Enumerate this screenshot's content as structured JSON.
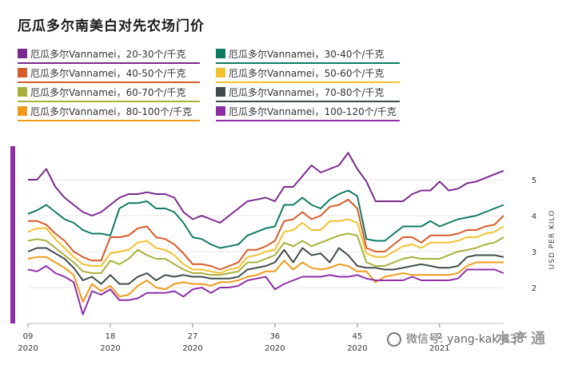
{
  "chart_data": {
    "type": "line",
    "title": "厄瓜多尔南美白对先农场门价",
    "ylabel": "USD PER KILO",
    "ylim": [
      1,
      6
    ],
    "yticks": [
      2,
      3,
      4,
      5
    ],
    "xticks": [
      {
        "x": 9,
        "week": "09",
        "year": "2020"
      },
      {
        "x": 18,
        "week": "18",
        "year": "2020"
      },
      {
        "x": 27,
        "week": "27",
        "year": "2020"
      },
      {
        "x": 36,
        "week": "36",
        "year": "2020"
      },
      {
        "x": 45,
        "week": "45",
        "year": "2020"
      },
      {
        "x": 54,
        "week": "2",
        "year": "2021"
      }
    ],
    "x": [
      9,
      10,
      11,
      12,
      13,
      14,
      15,
      16,
      17,
      18,
      19,
      20,
      21,
      22,
      23,
      24,
      25,
      26,
      27,
      28,
      29,
      30,
      31,
      32,
      33,
      34,
      35,
      36,
      37,
      38,
      39,
      40,
      41,
      42,
      43,
      44,
      45,
      46,
      47,
      48,
      49,
      50,
      51,
      52,
      53,
      54,
      55,
      56,
      57,
      58,
      59,
      60,
      61
    ],
    "series": [
      {
        "name": "厄瓜多尔Vannamei，20-30个/千克",
        "color": "#7b2a8f",
        "values": [
          5.0,
          5.0,
          5.3,
          4.8,
          4.5,
          4.3,
          4.1,
          4.0,
          4.1,
          4.3,
          4.5,
          4.6,
          4.6,
          4.65,
          4.6,
          4.6,
          4.5,
          4.1,
          3.9,
          4.0,
          3.9,
          3.8,
          4.0,
          4.2,
          4.4,
          4.45,
          4.5,
          4.4,
          4.8,
          4.8,
          5.1,
          5.4,
          5.2,
          5.3,
          5.4,
          5.75,
          5.3,
          4.95,
          4.4,
          4.4,
          4.4,
          4.4,
          4.6,
          4.7,
          4.7,
          4.95,
          4.7,
          4.75,
          4.9,
          4.95,
          5.05,
          5.15,
          5.25
        ]
      },
      {
        "name": "厄瓜多尔Vannamei，30-40个/千克",
        "color": "#0e7a63",
        "values": [
          4.05,
          4.15,
          4.3,
          4.1,
          3.9,
          3.8,
          3.6,
          3.5,
          3.5,
          3.45,
          4.2,
          4.35,
          4.35,
          4.4,
          4.2,
          4.2,
          4.1,
          3.8,
          3.4,
          3.35,
          3.2,
          3.1,
          3.15,
          3.2,
          3.45,
          3.55,
          3.65,
          3.7,
          4.3,
          4.3,
          4.5,
          4.3,
          4.2,
          4.45,
          4.6,
          4.7,
          4.55,
          3.35,
          3.3,
          3.3,
          3.5,
          3.7,
          3.7,
          3.7,
          3.85,
          3.7,
          3.8,
          3.9,
          3.95,
          4.0,
          4.1,
          4.2,
          4.3
        ]
      },
      {
        "name": "厄瓜多尔Vannamei，40-50个/千克",
        "color": "#d75a2a",
        "values": [
          3.85,
          3.85,
          3.75,
          3.5,
          3.3,
          3.0,
          2.85,
          2.75,
          2.75,
          3.4,
          3.4,
          3.45,
          3.65,
          3.7,
          3.4,
          3.35,
          3.2,
          2.95,
          2.65,
          2.65,
          2.6,
          2.5,
          2.6,
          2.7,
          3.05,
          3.05,
          3.15,
          3.3,
          3.85,
          3.9,
          4.1,
          3.9,
          4.0,
          4.25,
          4.3,
          4.45,
          4.2,
          3.1,
          3.0,
          3.0,
          3.2,
          3.4,
          3.4,
          3.25,
          3.45,
          3.45,
          3.45,
          3.5,
          3.6,
          3.6,
          3.7,
          3.75,
          4.0
        ]
      },
      {
        "name": "厄瓜多尔Vannamei，50-60个/千克",
        "color": "#f2c12e",
        "values": [
          3.55,
          3.65,
          3.65,
          3.35,
          3.1,
          2.85,
          2.65,
          2.6,
          2.6,
          2.95,
          3.0,
          3.05,
          3.25,
          3.3,
          3.1,
          3.05,
          2.9,
          2.65,
          2.5,
          2.5,
          2.45,
          2.4,
          2.5,
          2.55,
          2.85,
          2.9,
          3.0,
          3.05,
          3.55,
          3.6,
          3.8,
          3.6,
          3.6,
          3.85,
          3.85,
          3.9,
          3.8,
          2.95,
          2.85,
          2.85,
          3.0,
          3.15,
          3.2,
          3.1,
          3.25,
          3.25,
          3.25,
          3.3,
          3.4,
          3.4,
          3.5,
          3.55,
          3.7
        ]
      },
      {
        "name": "厄瓜多尔Vannamei，60-70个/千克",
        "color": "#a8b03a",
        "values": [
          3.3,
          3.35,
          3.3,
          3.1,
          2.9,
          2.7,
          2.45,
          2.4,
          2.4,
          2.75,
          2.65,
          2.8,
          3.05,
          2.9,
          2.8,
          2.8,
          2.65,
          2.5,
          2.4,
          2.4,
          2.35,
          2.35,
          2.4,
          2.45,
          2.7,
          2.7,
          2.8,
          2.9,
          3.25,
          3.15,
          3.3,
          3.15,
          3.25,
          3.35,
          3.45,
          3.5,
          3.45,
          2.7,
          2.6,
          2.6,
          2.7,
          2.8,
          2.85,
          2.8,
          2.8,
          2.8,
          2.9,
          3.0,
          3.05,
          3.1,
          3.2,
          3.25,
          3.4
        ]
      },
      {
        "name": "厄瓜多尔Vannamei，70-80个/千克",
        "color": "#3f4a4a",
        "values": [
          3.0,
          3.1,
          3.1,
          2.95,
          2.8,
          2.55,
          2.2,
          2.3,
          2.1,
          2.35,
          2.1,
          2.1,
          2.3,
          2.4,
          2.2,
          2.35,
          2.3,
          2.35,
          2.3,
          2.3,
          2.25,
          2.25,
          2.25,
          2.3,
          2.5,
          2.55,
          2.6,
          2.7,
          3.05,
          2.7,
          3.1,
          2.9,
          2.95,
          2.7,
          3.1,
          2.9,
          2.6,
          2.55,
          2.55,
          2.5,
          2.5,
          2.55,
          2.6,
          2.65,
          2.6,
          2.55,
          2.55,
          2.6,
          2.85,
          2.9,
          2.9,
          2.9,
          2.85
        ]
      },
      {
        "name": "厄瓜多尔Vannamei，80-100个/千克",
        "color": "#ef9a1a",
        "values": [
          2.8,
          2.85,
          2.85,
          2.7,
          2.55,
          2.35,
          1.6,
          2.1,
          1.9,
          2.05,
          1.75,
          1.8,
          2.05,
          2.2,
          2.0,
          1.95,
          2.1,
          2.15,
          2.1,
          2.1,
          2.05,
          2.15,
          2.15,
          2.2,
          2.3,
          2.35,
          2.45,
          2.45,
          2.75,
          2.5,
          2.7,
          2.55,
          2.5,
          2.55,
          2.65,
          2.6,
          2.45,
          2.45,
          2.15,
          2.3,
          2.35,
          2.4,
          2.35,
          2.35,
          2.35,
          2.35,
          2.35,
          2.4,
          2.6,
          2.7,
          2.7,
          2.7,
          2.7
        ]
      },
      {
        "name": "厄瓜多尔Vannamei，100-120个/千克",
        "color": "#8e2fa8",
        "values": [
          2.5,
          2.45,
          2.6,
          2.4,
          2.3,
          2.15,
          1.25,
          1.9,
          1.8,
          1.95,
          1.65,
          1.65,
          1.7,
          1.85,
          1.85,
          1.85,
          1.9,
          1.75,
          1.95,
          2.0,
          1.85,
          2.0,
          2.0,
          2.05,
          2.2,
          2.25,
          2.3,
          1.95,
          2.1,
          2.2,
          2.3,
          2.3,
          2.3,
          2.35,
          2.3,
          2.3,
          2.35,
          2.25,
          2.2,
          2.2,
          2.2,
          2.2,
          2.3,
          2.2,
          2.2,
          2.2,
          2.2,
          2.25,
          2.5,
          2.5,
          2.5,
          2.5,
          2.4
        ]
      }
    ]
  },
  "watermark": "微信号: yang-kak-838",
  "logo_text": "水产通"
}
